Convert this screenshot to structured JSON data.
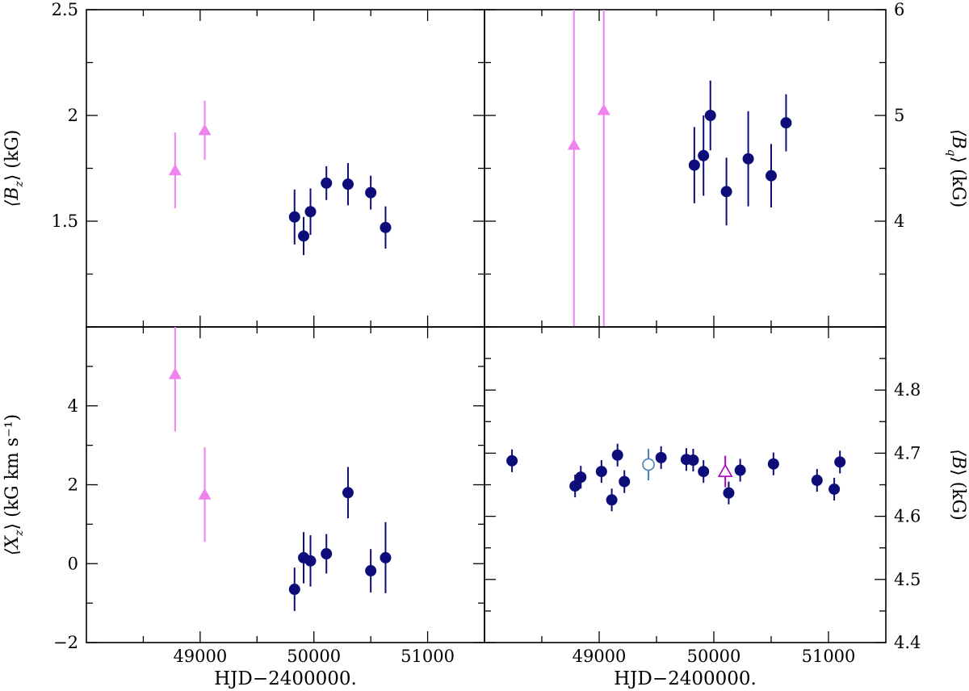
{
  "colors": {
    "navy": "#0d0d7a",
    "violet": "#ee82ee",
    "teal": "#4682b4",
    "purple": "#b000c8",
    "axis": "#000000"
  },
  "chart_data": [
    {
      "id": "bz",
      "type": "scatter",
      "ylabel_main": "⟨B",
      "ylabel_sub": "z",
      "ylabel_tail": "⟩ (kG)",
      "ylabel_side": "left",
      "xlim": [
        48000,
        51500
      ],
      "ylim": [
        1.0,
        2.5
      ],
      "yticks": [
        1.5,
        2.0,
        2.5
      ],
      "ytick_labels": [
        "1.5",
        "2",
        "2.5"
      ],
      "series": [
        {
          "name": "circles",
          "marker": "filled-circle",
          "color": "navy",
          "x": [
            49830,
            49910,
            49970,
            50110,
            50300,
            50500,
            50630
          ],
          "y": [
            1.52,
            1.43,
            1.545,
            1.68,
            1.675,
            1.635,
            1.47
          ],
          "err": [
            0.13,
            0.09,
            0.11,
            0.08,
            0.1,
            0.08,
            0.1
          ]
        },
        {
          "name": "triangles",
          "marker": "filled-triangle",
          "color": "violet",
          "x": [
            48780,
            49040
          ],
          "y": [
            1.74,
            1.93
          ],
          "err": [
            0.18,
            0.14
          ]
        }
      ]
    },
    {
      "id": "bq",
      "type": "scatter",
      "ylabel_main": "⟨B",
      "ylabel_sub": "q",
      "ylabel_tail": "⟩ (kG)",
      "ylabel_side": "right",
      "xlim": [
        48000,
        51500
      ],
      "ylim": [
        3.0,
        6.0
      ],
      "yticks": [
        4,
        5,
        6
      ],
      "ytick_labels": [
        "4",
        "5",
        "6"
      ],
      "series": [
        {
          "name": "circles",
          "marker": "filled-circle",
          "color": "navy",
          "x": [
            49830,
            49910,
            49970,
            50110,
            50300,
            50500,
            50630
          ],
          "y": [
            4.53,
            4.62,
            5.0,
            4.28,
            4.59,
            4.43,
            4.93
          ],
          "err": [
            0.36,
            0.38,
            0.33,
            0.32,
            0.45,
            0.3,
            0.27
          ]
        },
        {
          "name": "triangles",
          "marker": "filled-triangle",
          "color": "violet",
          "x": [
            48780,
            49040
          ],
          "y": [
            4.72,
            5.05
          ],
          "err": [
            5.0,
            5.0
          ]
        }
      ]
    },
    {
      "id": "xz",
      "type": "scatter",
      "ylabel_main": "⟨X",
      "ylabel_sub": "z",
      "ylabel_tail": "⟩ (kG km s⁻¹)",
      "ylabel_side": "left",
      "xlim": [
        48000,
        51500
      ],
      "ylim": [
        -2.0,
        6.0
      ],
      "yticks": [
        -2,
        0,
        2,
        4
      ],
      "ytick_labels": [
        "−2",
        "0",
        "2",
        "4"
      ],
      "xticks": [
        49000,
        50000,
        51000
      ],
      "xtick_labels": [
        "49000",
        "50000",
        "51000"
      ],
      "xlabel": "HJD−2400000.",
      "series": [
        {
          "name": "circles",
          "marker": "filled-circle",
          "color": "navy",
          "x": [
            49830,
            49910,
            49970,
            50110,
            50300,
            50500,
            50630
          ],
          "y": [
            -0.65,
            0.15,
            0.07,
            0.25,
            1.8,
            -0.18,
            0.15
          ],
          "err": [
            0.55,
            0.65,
            0.65,
            0.5,
            0.65,
            0.55,
            0.9
          ]
        },
        {
          "name": "triangles",
          "marker": "filled-triangle",
          "color": "violet",
          "x": [
            48780,
            49040
          ],
          "y": [
            4.8,
            1.75
          ],
          "err": [
            1.45,
            1.2
          ]
        }
      ]
    },
    {
      "id": "b",
      "type": "scatter",
      "ylabel_main": "⟨B",
      "ylabel_sub": "",
      "ylabel_tail": "⟩ (kG)",
      "ylabel_side": "right",
      "xlim": [
        48000,
        51500
      ],
      "ylim": [
        4.4,
        4.9
      ],
      "yticks": [
        4.4,
        4.5,
        4.6,
        4.7,
        4.8
      ],
      "ytick_labels": [
        "4.4",
        "4.5",
        "4.6",
        "4.7",
        "4.8"
      ],
      "xticks": [
        49000,
        50000,
        51000
      ],
      "xtick_labels": [
        "49000",
        "50000",
        "51000"
      ],
      "xlabel": "HJD−2400000.",
      "series": [
        {
          "name": "circles",
          "marker": "filled-circle",
          "color": "navy",
          "x": [
            48240,
            48790,
            48840,
            49020,
            49110,
            49160,
            49220,
            49540,
            49760,
            49820,
            49910,
            50130,
            50230,
            50520,
            50900,
            51050,
            51100
          ],
          "y": [
            4.688,
            4.648,
            4.662,
            4.671,
            4.626,
            4.697,
            4.655,
            4.693,
            4.69,
            4.689,
            4.671,
            4.637,
            4.673,
            4.683,
            4.657,
            4.643,
            4.686
          ],
          "err": [
            0.018,
            0.018,
            0.018,
            0.018,
            0.018,
            0.018,
            0.018,
            0.018,
            0.018,
            0.018,
            0.018,
            0.018,
            0.018,
            0.018,
            0.018,
            0.018,
            0.018
          ]
        },
        {
          "name": "open-circle",
          "marker": "open-circle",
          "color": "teal",
          "x": [
            49430
          ],
          "y": [
            4.682
          ],
          "err": [
            0.025
          ]
        },
        {
          "name": "open-triangle",
          "marker": "open-triangle",
          "color": "purple",
          "x": [
            50100
          ],
          "y": [
            4.671
          ],
          "err": [
            0.025
          ]
        }
      ]
    }
  ]
}
